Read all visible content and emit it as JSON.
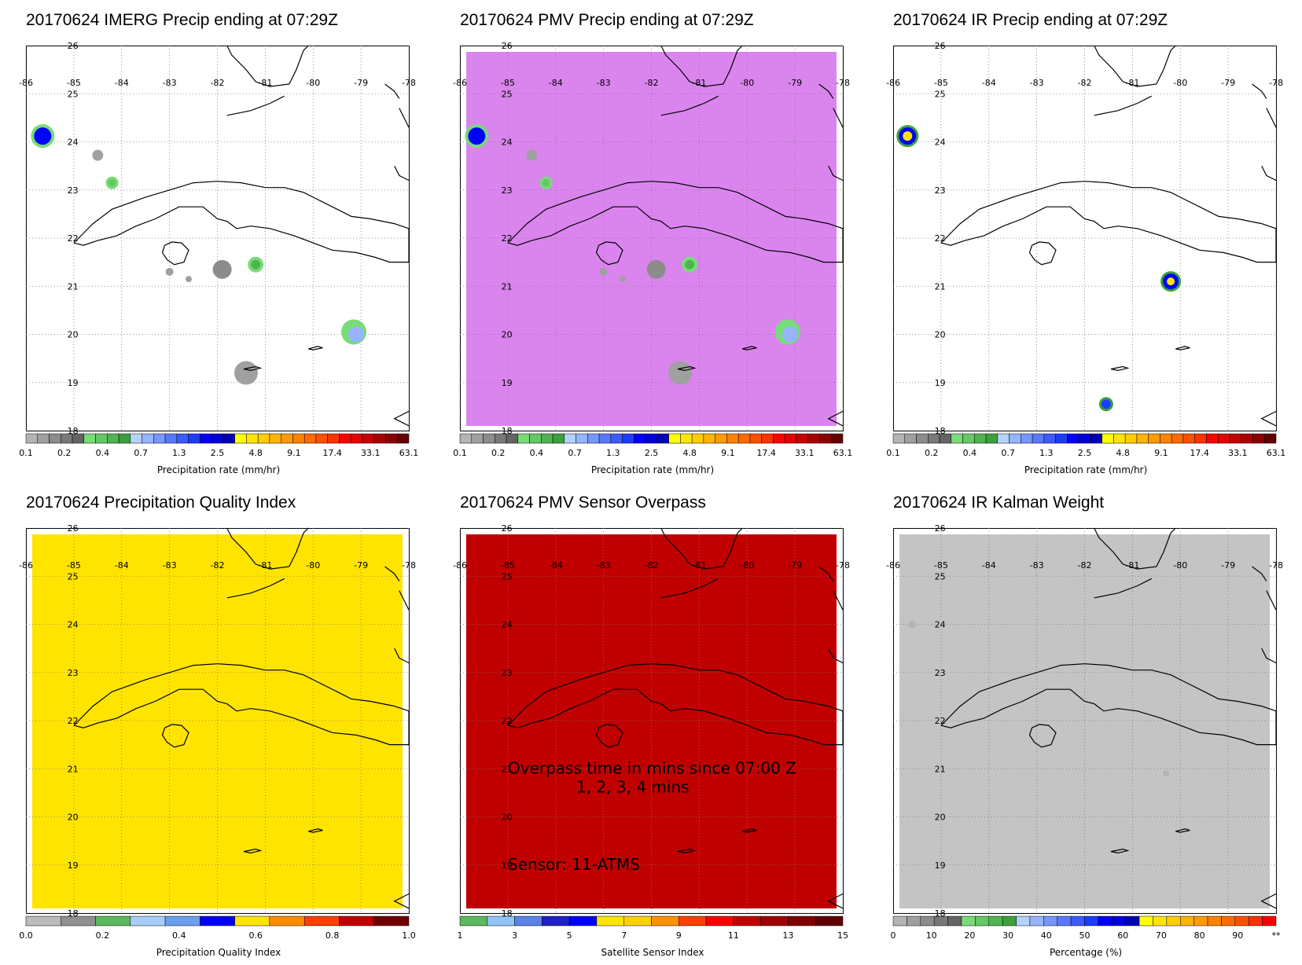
{
  "panels": [
    {
      "id": "imerg",
      "title": "20170624 IMERG Precip ending at 07:29Z",
      "background": "none",
      "colorbar": {
        "kind": "precip",
        "ticks": [
          "0.1",
          "0.2",
          "0.4",
          "0.7",
          "1.3",
          "2.5",
          "4.8",
          "9.1",
          "17.4",
          "33.1",
          "63.1"
        ],
        "label": "Precipitation rate (mm/hr)"
      }
    },
    {
      "id": "pmv",
      "title": "20170624 PMV Precip ending at 07:29Z",
      "background": "#da85ee",
      "colorbar": {
        "kind": "precip",
        "ticks": [
          "0.1",
          "0.2",
          "0.4",
          "0.7",
          "1.3",
          "2.5",
          "4.8",
          "9.1",
          "17.4",
          "33.1",
          "63.1"
        ],
        "label": "Precipitation rate (mm/hr)"
      }
    },
    {
      "id": "ir",
      "title": "20170624 IR Precip ending at 07:29Z",
      "background": "none",
      "colorbar": {
        "kind": "precip",
        "ticks": [
          "0.1",
          "0.2",
          "0.4",
          "0.7",
          "1.3",
          "2.5",
          "4.8",
          "9.1",
          "17.4",
          "33.1",
          "63.1"
        ],
        "label": "Precipitation rate (mm/hr)"
      }
    },
    {
      "id": "pqi",
      "title": "20170624 Precipitation Quality Index",
      "background": "#ffe400",
      "colorbar": {
        "kind": "quality",
        "ticks": [
          "0.0",
          "0.2",
          "0.4",
          "0.6",
          "0.8",
          "1.0"
        ],
        "label": "Precipitation Quality Index"
      }
    },
    {
      "id": "sensor",
      "title": "20170624 PMV Sensor Overpass",
      "background": "#c00000",
      "overlay": {
        "line1": "Overpass time in mins since 07:00 Z",
        "line2": "1, 2, 3, 4 mins",
        "line3": "Sensor:  11-ATMS"
      },
      "colorbar": {
        "kind": "sensor",
        "ticks": [
          "1",
          "3",
          "5",
          "7",
          "9",
          "11",
          "13",
          "15"
        ],
        "label": "Satellite Sensor Index"
      }
    },
    {
      "id": "kalman",
      "title": "20170624 IR Kalman Weight",
      "background": "#c4c4c4",
      "colorbar": {
        "kind": "percent",
        "ticks": [
          "0",
          "10",
          "20",
          "30",
          "40",
          "50",
          "60",
          "70",
          "80",
          "90",
          "**"
        ],
        "label": "Percentage (%)"
      }
    }
  ],
  "map": {
    "lon_labels": [
      "-86",
      "-85",
      "-84",
      "-83",
      "-82",
      "-81",
      "-80",
      "-79",
      "-78"
    ],
    "lat_labels": [
      "26",
      "25",
      "24",
      "23",
      "22",
      "21",
      "20",
      "19",
      "18"
    ],
    "lon_range": [
      -86,
      -78
    ],
    "lat_range": [
      18,
      26
    ]
  },
  "colors": {
    "precip": [
      "#b4b4b4",
      "#a0a0a0",
      "#8c8c8c",
      "#787878",
      "#646464",
      "#78dc78",
      "#64c864",
      "#50b450",
      "#3ca03c",
      "#b4d2ff",
      "#96b4ff",
      "#7896ff",
      "#5a78ff",
      "#3c5aff",
      "#1e3cff",
      "#0000ff",
      "#0000dc",
      "#0000b4",
      "#ffff00",
      "#ffe600",
      "#ffcd00",
      "#ffb400",
      "#ff9b00",
      "#ff8200",
      "#ff6900",
      "#ff5000",
      "#ff3200",
      "#ff0000",
      "#e60000",
      "#c80000",
      "#aa0000",
      "#8c0000",
      "#640000"
    ],
    "quality": [
      "#bcbcbc",
      "#909090",
      "#5cb85c",
      "#a6cdf8",
      "#6aa0ee",
      "#0000ff",
      "#ffe400",
      "#ff8c00",
      "#ff4000",
      "#c00000",
      "#6e0000"
    ],
    "sensor": [
      "#5cb85c",
      "#90c4f8",
      "#5a82e8",
      "#2020c8",
      "#0000ff",
      "#ffe400",
      "#ffd000",
      "#ff9000",
      "#ff4000",
      "#ff0000",
      "#c00000",
      "#a00000",
      "#800000",
      "#600000"
    ],
    "percent": [
      "#b4b4b4",
      "#a0a0a0",
      "#8c8c8c",
      "#787878",
      "#646464",
      "#78dc78",
      "#64c864",
      "#50b450",
      "#3ca03c",
      "#b4d2ff",
      "#96b4ff",
      "#7896ff",
      "#5a78ff",
      "#3c5aff",
      "#1e3cff",
      "#0000ff",
      "#0000dc",
      "#0000b4",
      "#ffff00",
      "#ffe600",
      "#ffcd00",
      "#ffb400",
      "#ff9b00",
      "#ff8200",
      "#ff6900",
      "#ff5000",
      "#ff3200",
      "#ff0000"
    ]
  }
}
